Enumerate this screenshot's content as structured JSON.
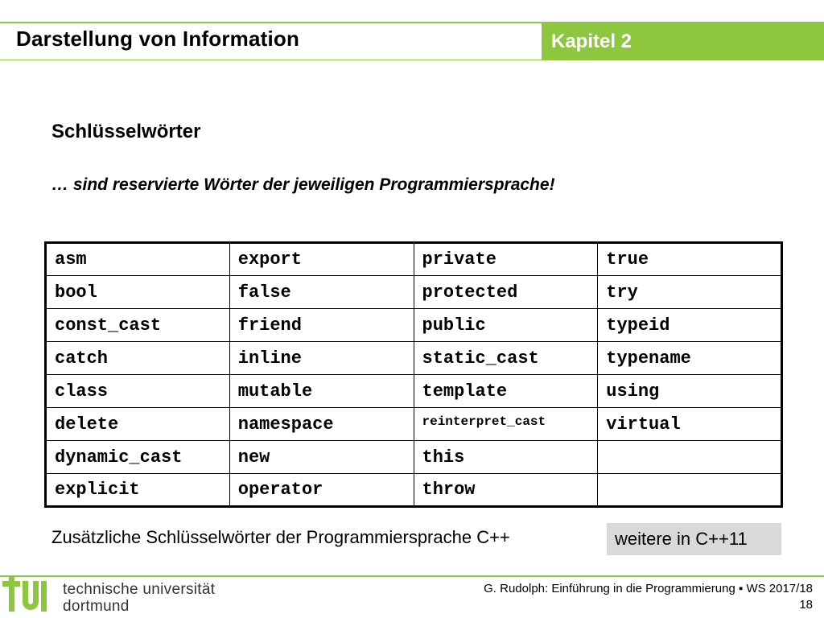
{
  "header": {
    "title": "Darstellung von Information",
    "chapter": "Kapitel 2"
  },
  "content": {
    "subtitle": "Schlüsselwörter",
    "lead": "… sind reservierte Wörter der jeweiligen Programmiersprache!",
    "keywords": [
      [
        "asm",
        "export",
        "private",
        "true"
      ],
      [
        "bool",
        "false",
        "protected",
        "try"
      ],
      [
        "const_cast",
        "friend",
        "public",
        "typeid"
      ],
      [
        "catch",
        "inline",
        "static_cast",
        "typename"
      ],
      [
        "class",
        "mutable",
        "template",
        "using"
      ],
      [
        "delete",
        "namespace",
        "reinterpret_cast",
        "virtual"
      ],
      [
        "dynamic_cast",
        "new",
        "this",
        ""
      ],
      [
        "explicit",
        "operator",
        "throw",
        ""
      ]
    ],
    "note": "Zusätzliche Schlüsselwörter der Programmiersprache C++",
    "extra_button": "weitere in C++11"
  },
  "footer": {
    "university_line1": "technische universität",
    "university_line2": "dortmund",
    "credit": "G. Rudolph: Einführung in die Programmierung ▪ WS 2017/18",
    "page_number": "18"
  },
  "colors": {
    "accent": "#8dc63f",
    "button_bg": "#d9d9d9"
  }
}
